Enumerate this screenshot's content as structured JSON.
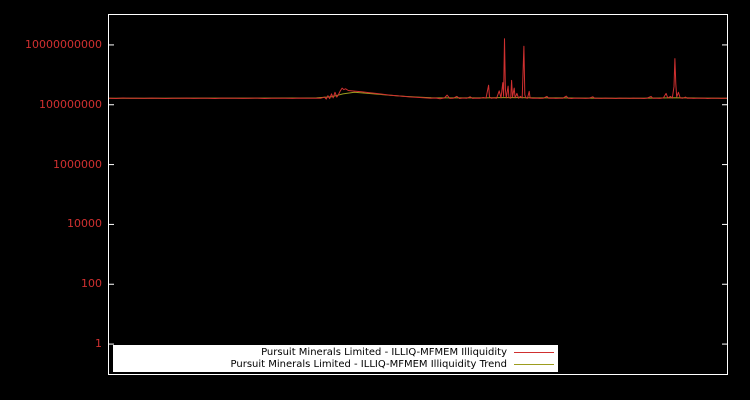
{
  "colors": {
    "background": "#000000",
    "frame": "#ffffff",
    "tick_label": "#d03030",
    "legend_bg": "#ffffff",
    "legend_text": "#000000"
  },
  "chart_data": {
    "type": "line",
    "y_scale": "log",
    "x_range": [
      0,
      700
    ],
    "ylim": [
      0.1,
      100000000000.0
    ],
    "grid": false,
    "legend_position": "bottom-center-inside",
    "y_ticks": [
      {
        "label": "1",
        "value": 1
      },
      {
        "label": "100",
        "value": 100
      },
      {
        "label": "10000",
        "value": 10000
      },
      {
        "label": "1000000",
        "value": 1000000
      },
      {
        "label": "100000000",
        "value": 100000000
      },
      {
        "label": "10000000000",
        "value": 10000000000
      }
    ],
    "series": [
      {
        "name": "Pursuit Minerals Limited - ILLIQ-MFMEM Illiquidity",
        "color": "#d03030",
        "points": [
          [
            0,
            165000000.0
          ],
          [
            8,
            162000000.0
          ],
          [
            16,
            168000000.0
          ],
          [
            24,
            164000000.0
          ],
          [
            32,
            166000000.0
          ],
          [
            40,
            163000000.0
          ],
          [
            48,
            167000000.0
          ],
          [
            56,
            165000000.0
          ],
          [
            64,
            162000000.0
          ],
          [
            72,
            166000000.0
          ],
          [
            80,
            164000000.0
          ],
          [
            88,
            167000000.0
          ],
          [
            96,
            163000000.0
          ],
          [
            104,
            166000000.0
          ],
          [
            112,
            165000000.0
          ],
          [
            120,
            162000000.0
          ],
          [
            128,
            167000000.0
          ],
          [
            136,
            164000000.0
          ],
          [
            144,
            166000000.0
          ],
          [
            152,
            163000000.0
          ],
          [
            160,
            165000000.0
          ],
          [
            168,
            167000000.0
          ],
          [
            176,
            162000000.0
          ],
          [
            184,
            166000000.0
          ],
          [
            192,
            164000000.0
          ],
          [
            200,
            165000000.0
          ],
          [
            208,
            163000000.0
          ],
          [
            216,
            167000000.0
          ],
          [
            224,
            164000000.0
          ],
          [
            232,
            166000000.0
          ],
          [
            240,
            165000000.0
          ],
          [
            244,
            180000000.0
          ],
          [
            246,
            155000000.0
          ],
          [
            248,
            200000000.0
          ],
          [
            250,
            160000000.0
          ],
          [
            252,
            230000000.0
          ],
          [
            254,
            170000000.0
          ],
          [
            256,
            260000000.0
          ],
          [
            258,
            180000000.0
          ],
          [
            260,
            220000000.0
          ],
          [
            262,
            290000000.0
          ],
          [
            264,
            360000000.0
          ],
          [
            266,
            320000000.0
          ],
          [
            268,
            340000000.0
          ],
          [
            271,
            300000000.0
          ],
          [
            278,
            285000000.0
          ],
          [
            286,
            270000000.0
          ],
          [
            294,
            255000000.0
          ],
          [
            302,
            240000000.0
          ],
          [
            310,
            225000000.0
          ],
          [
            318,
            210000000.0
          ],
          [
            326,
            200000000.0
          ],
          [
            334,
            190000000.0
          ],
          [
            342,
            182000000.0
          ],
          [
            350,
            176000000.0
          ],
          [
            358,
            170000000.0
          ],
          [
            364,
            166000000.0
          ],
          [
            370,
            168000000.0
          ],
          [
            375,
            158000000.0
          ],
          [
            380,
            170000000.0
          ],
          [
            383,
            210000000.0
          ],
          [
            386,
            163000000.0
          ],
          [
            390,
            166000000.0
          ],
          [
            394,
            190000000.0
          ],
          [
            397,
            162000000.0
          ],
          [
            401,
            168000000.0
          ],
          [
            405,
            164000000.0
          ],
          [
            409,
            185000000.0
          ],
          [
            412,
            163000000.0
          ],
          [
            416,
            167000000.0
          ],
          [
            420,
            164000000.0
          ],
          [
            424,
            175000000.0
          ],
          [
            427,
            165000000.0
          ],
          [
            430,
            450000000.0
          ],
          [
            431,
            180000000.0
          ],
          [
            433,
            166000000.0
          ],
          [
            436,
            170000000.0
          ],
          [
            439,
            164000000.0
          ],
          [
            442,
            290000000.0
          ],
          [
            444,
            170000000.0
          ],
          [
            446,
            550000000.0
          ],
          [
            447,
            190000000.0
          ],
          [
            448,
            16000000000.0
          ],
          [
            449,
            320000000.0
          ],
          [
            450,
            170000000.0
          ],
          [
            452,
            420000000.0
          ],
          [
            453,
            172000000.0
          ],
          [
            455,
            166000000.0
          ],
          [
            456,
            650000000.0
          ],
          [
            457,
            180000000.0
          ],
          [
            459,
            360000000.0
          ],
          [
            460,
            170000000.0
          ],
          [
            462,
            240000000.0
          ],
          [
            464,
            166000000.0
          ],
          [
            466,
            190000000.0
          ],
          [
            468,
            168000000.0
          ],
          [
            470,
            9000000000.0
          ],
          [
            471,
            220000000.0
          ],
          [
            472,
            170000000.0
          ],
          [
            474,
            166000000.0
          ],
          [
            476,
            280000000.0
          ],
          [
            477,
            168000000.0
          ],
          [
            480,
            164000000.0
          ],
          [
            484,
            167000000.0
          ],
          [
            488,
            163000000.0
          ],
          [
            492,
            166000000.0
          ],
          [
            496,
            190000000.0
          ],
          [
            498,
            164000000.0
          ],
          [
            502,
            167000000.0
          ],
          [
            506,
            163000000.0
          ],
          [
            510,
            166000000.0
          ],
          [
            514,
            164000000.0
          ],
          [
            518,
            195000000.0
          ],
          [
            520,
            165000000.0
          ],
          [
            524,
            162000000.0
          ],
          [
            528,
            167000000.0
          ],
          [
            532,
            164000000.0
          ],
          [
            536,
            166000000.0
          ],
          [
            540,
            163000000.0
          ],
          [
            544,
            167000000.0
          ],
          [
            548,
            185000000.0
          ],
          [
            550,
            164000000.0
          ],
          [
            554,
            166000000.0
          ],
          [
            558,
            163000000.0
          ],
          [
            562,
            167000000.0
          ],
          [
            566,
            164000000.0
          ],
          [
            570,
            166000000.0
          ],
          [
            574,
            162000000.0
          ],
          [
            578,
            167000000.0
          ],
          [
            582,
            164000000.0
          ],
          [
            586,
            166000000.0
          ],
          [
            590,
            163000000.0
          ],
          [
            594,
            167000000.0
          ],
          [
            598,
            164000000.0
          ],
          [
            602,
            166000000.0
          ],
          [
            606,
            162000000.0
          ],
          [
            610,
            168000000.0
          ],
          [
            614,
            190000000.0
          ],
          [
            616,
            164000000.0
          ],
          [
            620,
            166000000.0
          ],
          [
            624,
            163000000.0
          ],
          [
            628,
            170000000.0
          ],
          [
            631,
            240000000.0
          ],
          [
            633,
            168000000.0
          ],
          [
            636,
            190000000.0
          ],
          [
            638,
            166000000.0
          ],
          [
            640,
            400000000.0
          ],
          [
            641,
            3500000000.0
          ],
          [
            642,
            500000000.0
          ],
          [
            643,
            180000000.0
          ],
          [
            645,
            260000000.0
          ],
          [
            647,
            168000000.0
          ],
          [
            650,
            165000000.0
          ],
          [
            653,
            180000000.0
          ],
          [
            655,
            164000000.0
          ],
          [
            658,
            167000000.0
          ],
          [
            662,
            163000000.0
          ],
          [
            666,
            166000000.0
          ],
          [
            670,
            164000000.0
          ],
          [
            674,
            167000000.0
          ],
          [
            678,
            162000000.0
          ],
          [
            682,
            166000000.0
          ],
          [
            686,
            164000000.0
          ],
          [
            690,
            166000000.0
          ],
          [
            694,
            163000000.0
          ],
          [
            698,
            165000000.0
          ],
          [
            700,
            165000000.0
          ]
        ]
      },
      {
        "name": "Pursuit Minerals Limited - ILLIQ-MFMEM Illiquidity Trend",
        "color": "#9c9c1e",
        "points": [
          [
            0,
            166000000.0
          ],
          [
            50,
            166000000.0
          ],
          [
            100,
            167000000.0
          ],
          [
            150,
            167000000.0
          ],
          [
            200,
            168000000.0
          ],
          [
            235,
            170000000.0
          ],
          [
            252,
            185000000.0
          ],
          [
            265,
            230000000.0
          ],
          [
            278,
            260000000.0
          ],
          [
            290,
            245000000.0
          ],
          [
            305,
            225000000.0
          ],
          [
            320,
            205000000.0
          ],
          [
            335,
            190000000.0
          ],
          [
            350,
            180000000.0
          ],
          [
            365,
            172000000.0
          ],
          [
            385,
            170000000.0
          ],
          [
            405,
            169000000.0
          ],
          [
            425,
            170000000.0
          ],
          [
            445,
            174000000.0
          ],
          [
            465,
            174000000.0
          ],
          [
            485,
            170000000.0
          ],
          [
            510,
            169000000.0
          ],
          [
            540,
            167000000.0
          ],
          [
            570,
            166000000.0
          ],
          [
            600,
            166000000.0
          ],
          [
            625,
            168000000.0
          ],
          [
            640,
            172000000.0
          ],
          [
            655,
            170000000.0
          ],
          [
            675,
            167000000.0
          ],
          [
            700,
            166000000.0
          ]
        ]
      }
    ]
  }
}
